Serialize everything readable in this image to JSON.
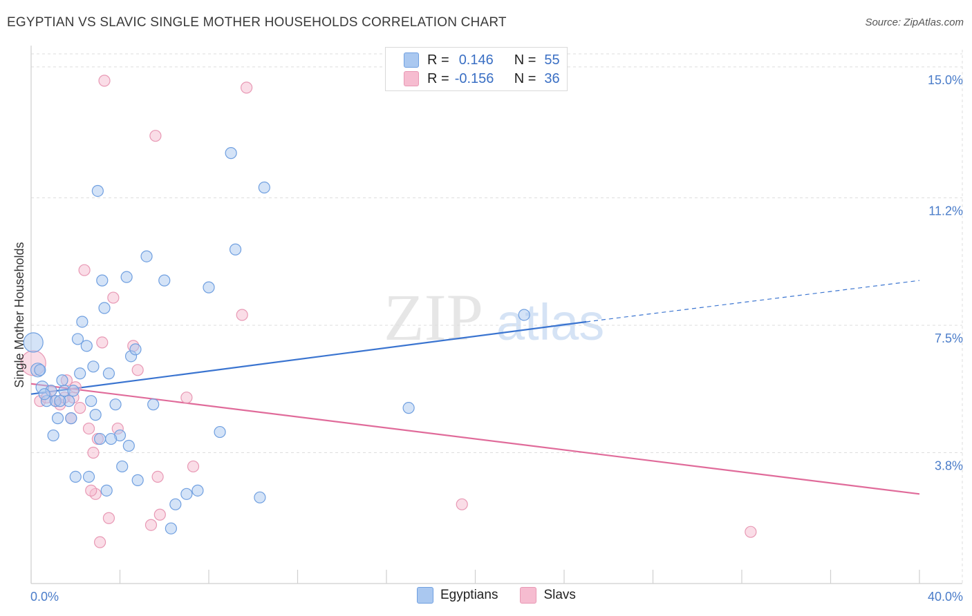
{
  "title": "EGYPTIAN VS SLAVIC SINGLE MOTHER HOUSEHOLDS CORRELATION CHART",
  "source": "Source: ZipAtlas.com",
  "watermark": {
    "zip": "ZIP",
    "atlas": "atlas"
  },
  "legend": {
    "rows": [
      {
        "r_label": "R =",
        "r_value": "0.146",
        "n_label": "N =",
        "n_value": "55"
      },
      {
        "r_label": "R =",
        "r_value": "-0.156",
        "n_label": "N =",
        "n_value": "36"
      }
    ]
  },
  "bottom_legend": [
    "Egyptians",
    "Slavs"
  ],
  "colors": {
    "blue_fill": "#aac8f0",
    "blue_stroke": "#6f9fe0",
    "blue_line": "#3a74d0",
    "pink_fill": "#f6bcd0",
    "pink_stroke": "#e898b4",
    "pink_line": "#e06b9a",
    "grid": "#dddddd",
    "tick_text": "#4a7cc9"
  },
  "chart_data": {
    "type": "scatter",
    "title": "EGYPTIAN VS SLAVIC SINGLE MOTHER HOUSEHOLDS CORRELATION CHART",
    "xlabel": "",
    "ylabel": "Single Mother Households",
    "xlim": [
      0,
      40
    ],
    "ylim": [
      0,
      15.5
    ],
    "x_tick_labels": [
      "0.0%",
      "40.0%"
    ],
    "y_ticks": [
      3.8,
      7.5,
      11.2,
      15.0
    ],
    "y_tick_labels": [
      "3.8%",
      "7.5%",
      "11.2%",
      "15.0%"
    ],
    "series": [
      {
        "name": "Egyptians",
        "R": 0.146,
        "N": 55,
        "trend": {
          "x0": 0,
          "y0": 5.5,
          "x1": 25,
          "y1": 7.6,
          "dash_x1": 40,
          "dash_y1": 8.8
        },
        "points": [
          {
            "x": 0.1,
            "y": 7.0,
            "s": 14
          },
          {
            "x": 0.3,
            "y": 6.2,
            "s": 10
          },
          {
            "x": 0.5,
            "y": 5.7,
            "s": 9
          },
          {
            "x": 0.7,
            "y": 5.3,
            "s": 8
          },
          {
            "x": 0.9,
            "y": 5.6,
            "s": 8
          },
          {
            "x": 1.0,
            "y": 4.3,
            "s": 8
          },
          {
            "x": 1.1,
            "y": 5.3,
            "s": 8
          },
          {
            "x": 1.2,
            "y": 4.8,
            "s": 8
          },
          {
            "x": 1.4,
            "y": 5.9,
            "s": 8
          },
          {
            "x": 1.5,
            "y": 5.6,
            "s": 8
          },
          {
            "x": 1.7,
            "y": 5.3,
            "s": 8
          },
          {
            "x": 1.8,
            "y": 4.8,
            "s": 8
          },
          {
            "x": 1.9,
            "y": 5.6,
            "s": 8
          },
          {
            "x": 2.0,
            "y": 3.1,
            "s": 8
          },
          {
            "x": 2.1,
            "y": 7.1,
            "s": 8
          },
          {
            "x": 2.2,
            "y": 6.1,
            "s": 8
          },
          {
            "x": 2.3,
            "y": 7.6,
            "s": 8
          },
          {
            "x": 2.5,
            "y": 6.9,
            "s": 8
          },
          {
            "x": 2.6,
            "y": 3.1,
            "s": 8
          },
          {
            "x": 2.7,
            "y": 5.3,
            "s": 8
          },
          {
            "x": 2.8,
            "y": 6.3,
            "s": 8
          },
          {
            "x": 2.9,
            "y": 4.9,
            "s": 8
          },
          {
            "x": 3.0,
            "y": 11.4,
            "s": 8
          },
          {
            "x": 3.1,
            "y": 4.2,
            "s": 8
          },
          {
            "x": 3.2,
            "y": 8.8,
            "s": 8
          },
          {
            "x": 3.3,
            "y": 8.0,
            "s": 8
          },
          {
            "x": 3.4,
            "y": 2.7,
            "s": 8
          },
          {
            "x": 3.5,
            "y": 6.1,
            "s": 8
          },
          {
            "x": 3.8,
            "y": 5.2,
            "s": 8
          },
          {
            "x": 4.0,
            "y": 4.3,
            "s": 8
          },
          {
            "x": 4.1,
            "y": 3.4,
            "s": 8
          },
          {
            "x": 4.3,
            "y": 8.9,
            "s": 8
          },
          {
            "x": 4.4,
            "y": 4.0,
            "s": 8
          },
          {
            "x": 4.5,
            "y": 6.6,
            "s": 8
          },
          {
            "x": 4.8,
            "y": 3.0,
            "s": 8
          },
          {
            "x": 5.2,
            "y": 9.5,
            "s": 8
          },
          {
            "x": 5.5,
            "y": 5.2,
            "s": 8
          },
          {
            "x": 6.0,
            "y": 8.8,
            "s": 8
          },
          {
            "x": 6.5,
            "y": 2.3,
            "s": 8
          },
          {
            "x": 7.0,
            "y": 2.6,
            "s": 8
          },
          {
            "x": 7.5,
            "y": 2.7,
            "s": 8
          },
          {
            "x": 8.0,
            "y": 8.6,
            "s": 8
          },
          {
            "x": 8.5,
            "y": 4.4,
            "s": 8
          },
          {
            "x": 9.0,
            "y": 12.5,
            "s": 8
          },
          {
            "x": 9.2,
            "y": 9.7,
            "s": 8
          },
          {
            "x": 10.3,
            "y": 2.5,
            "s": 8
          },
          {
            "x": 10.5,
            "y": 11.5,
            "s": 8
          },
          {
            "x": 17.0,
            "y": 5.1,
            "s": 8
          },
          {
            "x": 0.6,
            "y": 5.5,
            "s": 8
          },
          {
            "x": 0.4,
            "y": 6.2,
            "s": 8
          },
          {
            "x": 1.3,
            "y": 5.3,
            "s": 8
          },
          {
            "x": 4.7,
            "y": 6.8,
            "s": 8
          },
          {
            "x": 6.3,
            "y": 1.6,
            "s": 8
          },
          {
            "x": 3.6,
            "y": 4.2,
            "s": 8
          },
          {
            "x": 22.2,
            "y": 7.8,
            "s": 8
          }
        ]
      },
      {
        "name": "Slavs",
        "R": -0.156,
        "N": 36,
        "trend": {
          "x0": 0,
          "y0": 5.8,
          "x1": 40,
          "y1": 2.6
        },
        "points": [
          {
            "x": 0.1,
            "y": 6.4,
            "s": 18
          },
          {
            "x": 0.4,
            "y": 5.3,
            "s": 8
          },
          {
            "x": 0.7,
            "y": 5.4,
            "s": 8
          },
          {
            "x": 0.9,
            "y": 5.6,
            "s": 8
          },
          {
            "x": 1.1,
            "y": 5.3,
            "s": 8
          },
          {
            "x": 1.3,
            "y": 5.2,
            "s": 8
          },
          {
            "x": 1.5,
            "y": 5.4,
            "s": 8
          },
          {
            "x": 1.6,
            "y": 5.9,
            "s": 8
          },
          {
            "x": 1.8,
            "y": 4.8,
            "s": 8
          },
          {
            "x": 1.9,
            "y": 5.4,
            "s": 8
          },
          {
            "x": 2.0,
            "y": 5.7,
            "s": 8
          },
          {
            "x": 2.2,
            "y": 5.1,
            "s": 8
          },
          {
            "x": 2.4,
            "y": 9.1,
            "s": 8
          },
          {
            "x": 2.6,
            "y": 4.5,
            "s": 8
          },
          {
            "x": 2.8,
            "y": 3.8,
            "s": 8
          },
          {
            "x": 2.9,
            "y": 2.6,
            "s": 8
          },
          {
            "x": 3.0,
            "y": 4.2,
            "s": 8
          },
          {
            "x": 3.2,
            "y": 7.0,
            "s": 8
          },
          {
            "x": 3.3,
            "y": 14.6,
            "s": 8
          },
          {
            "x": 3.5,
            "y": 1.9,
            "s": 8
          },
          {
            "x": 3.7,
            "y": 8.3,
            "s": 8
          },
          {
            "x": 3.9,
            "y": 4.5,
            "s": 8
          },
          {
            "x": 4.6,
            "y": 6.9,
            "s": 8
          },
          {
            "x": 4.8,
            "y": 6.2,
            "s": 8
          },
          {
            "x": 5.4,
            "y": 1.7,
            "s": 8
          },
          {
            "x": 5.6,
            "y": 13.0,
            "s": 8
          },
          {
            "x": 5.7,
            "y": 3.1,
            "s": 8
          },
          {
            "x": 5.8,
            "y": 2.0,
            "s": 8
          },
          {
            "x": 7.0,
            "y": 5.4,
            "s": 8
          },
          {
            "x": 7.3,
            "y": 3.4,
            "s": 8
          },
          {
            "x": 9.5,
            "y": 7.8,
            "s": 8
          },
          {
            "x": 9.7,
            "y": 14.4,
            "s": 8
          },
          {
            "x": 19.4,
            "y": 2.3,
            "s": 8
          },
          {
            "x": 32.4,
            "y": 1.5,
            "s": 8
          },
          {
            "x": 3.1,
            "y": 1.2,
            "s": 8
          },
          {
            "x": 2.7,
            "y": 2.7,
            "s": 8
          }
        ]
      }
    ]
  }
}
